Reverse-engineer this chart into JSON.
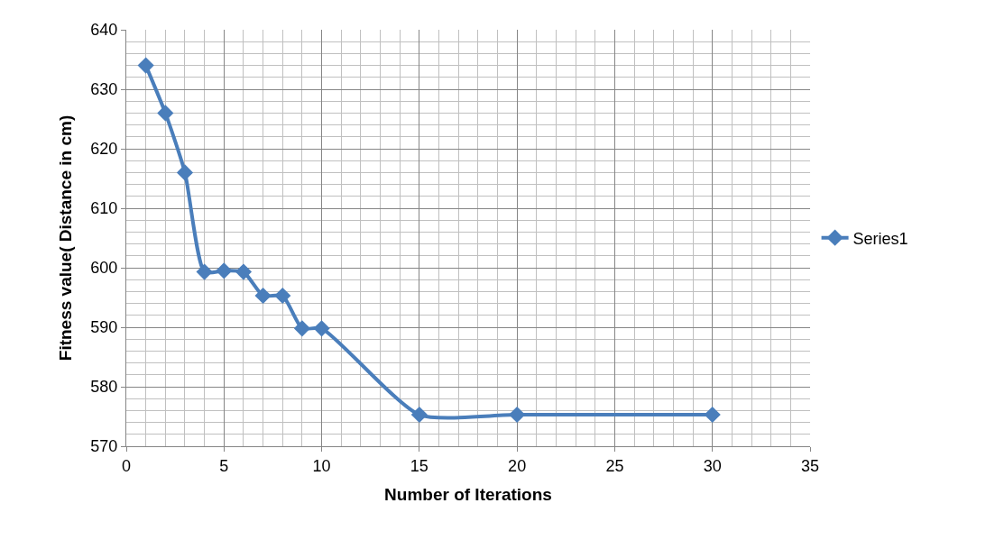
{
  "chart_data": {
    "type": "line",
    "xlabel": "Number of Iterations",
    "ylabel": "Fitness value( Distance in cm)",
    "x": [
      1,
      2,
      3,
      4,
      5,
      6,
      7,
      8,
      9,
      10,
      15,
      20,
      30
    ],
    "series": [
      {
        "name": "Series1",
        "color": "#4a7ebb",
        "values": [
          634,
          626,
          616,
          599.3,
          599.5,
          599.3,
          595.3,
          595.3,
          589.8,
          589.8,
          575.3,
          575.3,
          575.3
        ]
      }
    ],
    "xlim": [
      0,
      35
    ],
    "xticks": [
      0,
      5,
      10,
      15,
      20,
      25,
      30,
      35
    ],
    "ylim": [
      570,
      640
    ],
    "yticks": [
      570,
      580,
      590,
      600,
      610,
      620,
      630,
      640
    ],
    "grid": true,
    "legend": "right",
    "marker": "diamond",
    "line_style": "solid"
  }
}
